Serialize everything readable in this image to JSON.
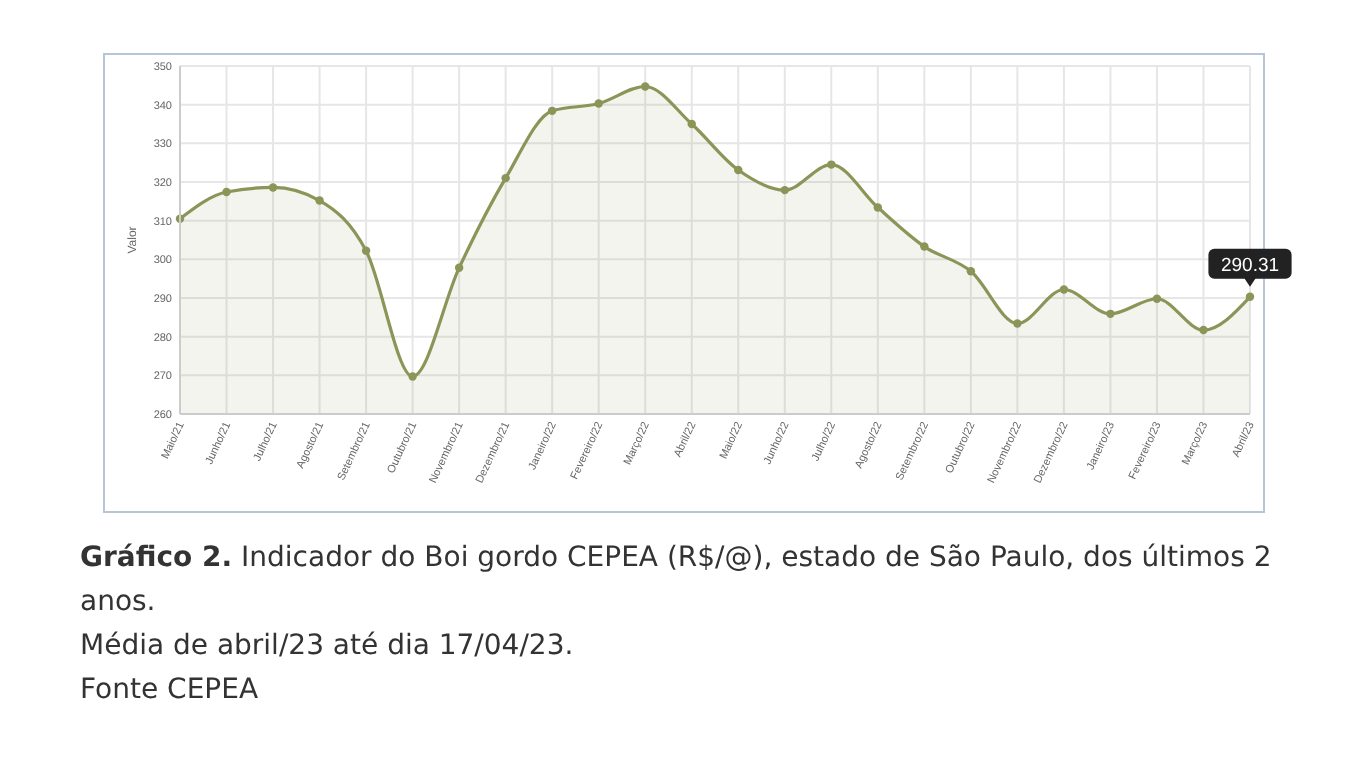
{
  "chart_data": {
    "type": "area",
    "ylabel": "Valor",
    "categories": [
      "Maio/21",
      "Junho/21",
      "Julho/21",
      "Agosto/21",
      "Setembro/21",
      "Outubro/21",
      "Novembro/21",
      "Dezembro/21",
      "Janeiro/22",
      "Fevereiro/22",
      "Março/22",
      "Abril/22",
      "Maio/22",
      "Junho/22",
      "Julho/22",
      "Agosto/22",
      "Setembro/22",
      "Outubro/22",
      "Novembro/22",
      "Dezembro/22",
      "Janeiro/23",
      "Fevereiro/23",
      "Março/23",
      "Abril/23"
    ],
    "series": [
      {
        "color": "#8a9658",
        "values": [
          310.5,
          317.4,
          318.6,
          315.2,
          302.2,
          269.7,
          297.8,
          321,
          338.4,
          340.3,
          344.7,
          335,
          323.1,
          317.9,
          324.5,
          313.4,
          303.3,
          296.9,
          283.4,
          292.2,
          285.9,
          289.8,
          281.7,
          290.31
        ],
        "value_labels": [
          null,
          null,
          null,
          null,
          null,
          null,
          null,
          null,
          null,
          null,
          null,
          null,
          null,
          null,
          null,
          null,
          null,
          null,
          null,
          null,
          null,
          null,
          null,
          "290.31"
        ]
      }
    ],
    "ylim": [
      260,
      350
    ],
    "yticks": [
      260,
      270,
      280,
      290,
      300,
      310,
      320,
      330,
      340,
      350
    ],
    "grid": true,
    "marker": "circle",
    "annotations": [
      "Gráfico 2. Indicador do Boi gordo CEPEA (R$/@), estado de São Paulo, dos últimos 2 anos.",
      "Média de abril/23 até dia 17/04/23.",
      "Fonte CEPEA"
    ]
  }
}
